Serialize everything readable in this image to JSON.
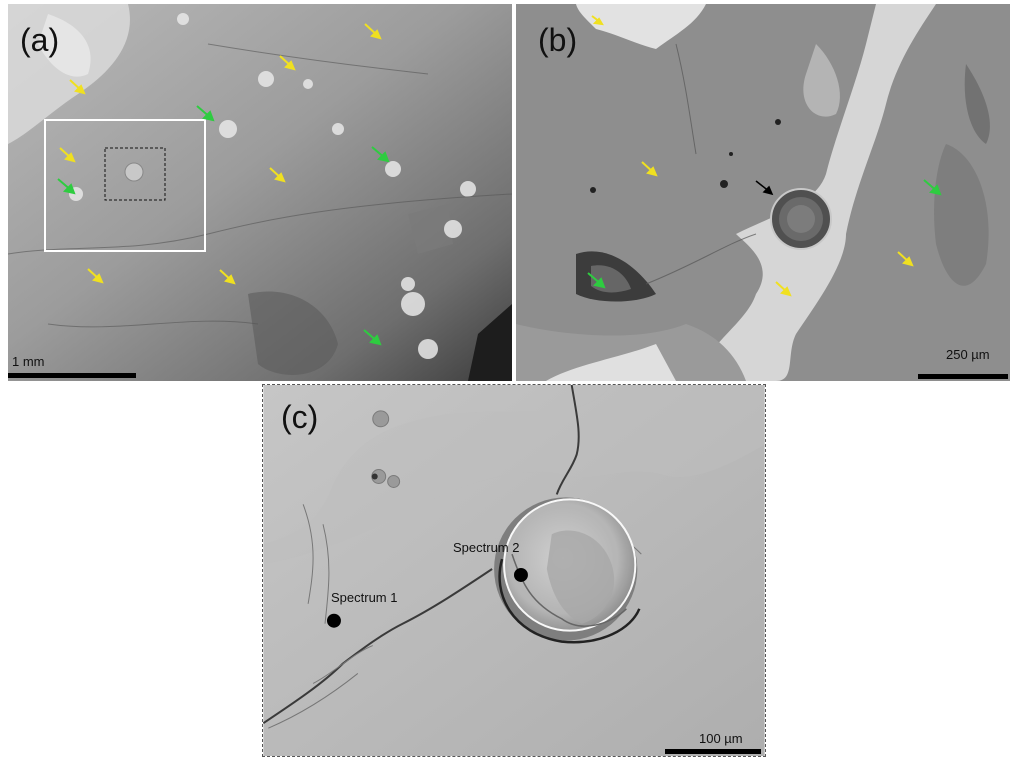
{
  "panels": {
    "a": {
      "label": "(a)",
      "scale": "1 mm"
    },
    "b": {
      "label": "(b)",
      "scale": "250 µm"
    },
    "c": {
      "label": "(c)",
      "scale": "100 µm"
    }
  },
  "spectra": [
    "Spectrum 1",
    "Spectrum 2"
  ],
  "colors": {
    "yellow_arrow": "#f0e020",
    "green_arrow": "#2ecc40",
    "black_arrow": "#000000"
  }
}
